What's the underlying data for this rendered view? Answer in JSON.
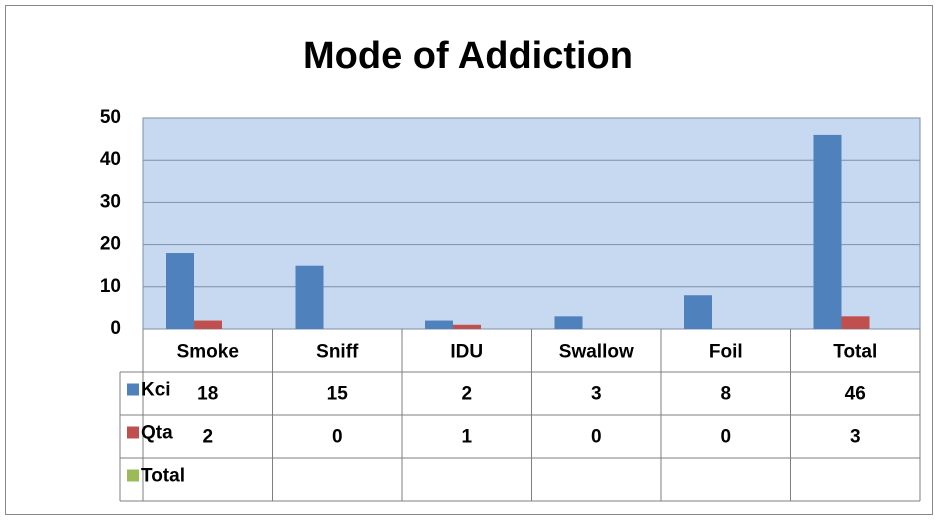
{
  "chart_data": {
    "type": "bar",
    "title": "Mode of Addiction",
    "categories": [
      "Smoke",
      "Sniff",
      "IDU",
      "Swallow",
      "Foil",
      "Total"
    ],
    "series": [
      {
        "name": "Kci",
        "color": "#4f81bd",
        "values": [
          18,
          15,
          2,
          3,
          8,
          46
        ]
      },
      {
        "name": "Qta",
        "color": "#c0504d",
        "values": [
          2,
          0,
          1,
          0,
          0,
          3
        ]
      },
      {
        "name": "Total",
        "color": "#9bbb59",
        "values": [
          null,
          null,
          null,
          null,
          null,
          null
        ]
      }
    ],
    "ylim": [
      0,
      50
    ],
    "yticks": [
      0,
      10,
      20,
      30,
      40,
      50
    ],
    "grid": true,
    "plot_background": "#c6d9f1"
  }
}
